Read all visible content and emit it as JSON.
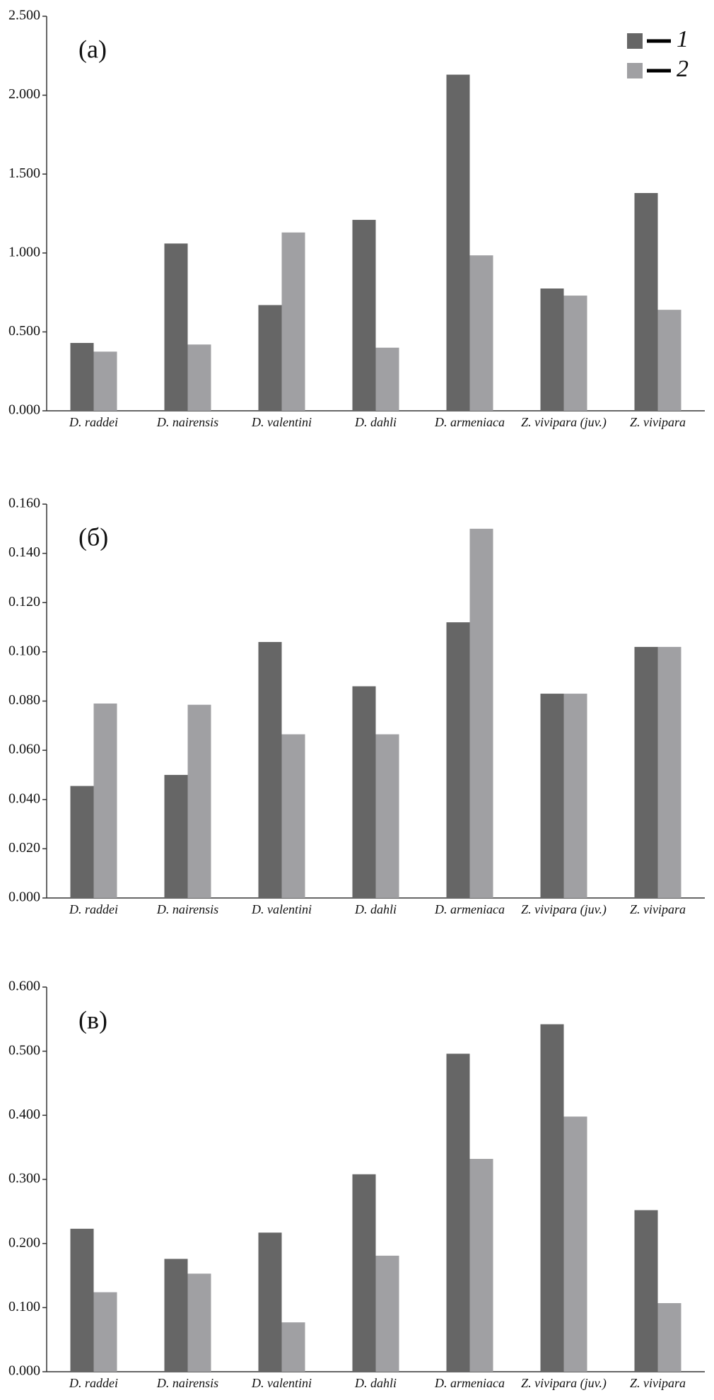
{
  "chart_data": [
    {
      "type": "bar",
      "annotation": "(а)",
      "legend": "top-right",
      "categories": [
        "D. raddei",
        "D. nairensis",
        "D. valentini",
        "D. dahli",
        "D. armeniaca",
        "Z. vivipara (juv.)",
        "Z. vivipara"
      ],
      "series": [
        {
          "name": "1",
          "color": "#666666",
          "values": [
            0.43,
            1.06,
            0.67,
            1.21,
            2.13,
            0.775,
            1.38
          ]
        },
        {
          "name": "2",
          "color": "#a0a0a3",
          "values": [
            0.375,
            0.42,
            1.13,
            0.4,
            0.985,
            0.73,
            0.64
          ]
        }
      ],
      "ylim": [
        0,
        2.5
      ],
      "yticks": [
        {
          "value": 0,
          "label": "0.000"
        },
        {
          "value": 0.5,
          "label": "0.500"
        },
        {
          "value": 1,
          "label": "1.000"
        },
        {
          "value": 1.5,
          "label": "1.500"
        },
        {
          "value": 2,
          "label": "2.000"
        },
        {
          "value": 2.5,
          "label": "2.500"
        }
      ]
    },
    {
      "type": "bar",
      "annotation": "(б)",
      "categories": [
        "D. raddei",
        "D. nairensis",
        "D. valentini",
        "D. dahli",
        "D. armeniaca",
        "Z. vivipara (juv.)",
        "Z. vivipara"
      ],
      "series": [
        {
          "color": "#666666",
          "values": [
            0.0455,
            0.05,
            0.104,
            0.086,
            0.112,
            0.083,
            0.102
          ]
        },
        {
          "color": "#a0a0a3",
          "values": [
            0.079,
            0.0785,
            0.0665,
            0.0665,
            0.15,
            0.083,
            0.102
          ]
        }
      ],
      "ylim": [
        0,
        0.16
      ],
      "yticks": [
        {
          "value": 0,
          "label": "0.000"
        },
        {
          "value": 0.02,
          "label": "0.020"
        },
        {
          "value": 0.04,
          "label": "0.040"
        },
        {
          "value": 0.06,
          "label": "0.060"
        },
        {
          "value": 0.08,
          "label": "0.080"
        },
        {
          "value": 0.1,
          "label": "0.100"
        },
        {
          "value": 0.12,
          "label": "0.120"
        },
        {
          "value": 0.14,
          "label": "0.140"
        },
        {
          "value": 0.16,
          "label": "0.160"
        }
      ]
    },
    {
      "type": "bar",
      "annotation": "(в)",
      "categories": [
        "D. raddei",
        "D. nairensis",
        "D. valentini",
        "D. dahli",
        "D. armeniaca",
        "Z. vivipara (juv.)",
        "Z. vivipara"
      ],
      "series": [
        {
          "color": "#666666",
          "values": [
            0.223,
            0.176,
            0.217,
            0.308,
            0.496,
            0.542,
            0.252
          ]
        },
        {
          "color": "#a0a0a3",
          "values": [
            0.124,
            0.153,
            0.077,
            0.181,
            0.332,
            0.398,
            0.107
          ]
        }
      ],
      "ylim": [
        0,
        0.6
      ],
      "yticks": [
        {
          "value": 0,
          "label": "0.000"
        },
        {
          "value": 0.1,
          "label": "0.100"
        },
        {
          "value": 0.2,
          "label": "0.200"
        },
        {
          "value": 0.3,
          "label": "0.300"
        },
        {
          "value": 0.4,
          "label": "0.400"
        },
        {
          "value": 0.5,
          "label": "0.500"
        },
        {
          "value": 0.6,
          "label": "0.600"
        }
      ]
    }
  ]
}
